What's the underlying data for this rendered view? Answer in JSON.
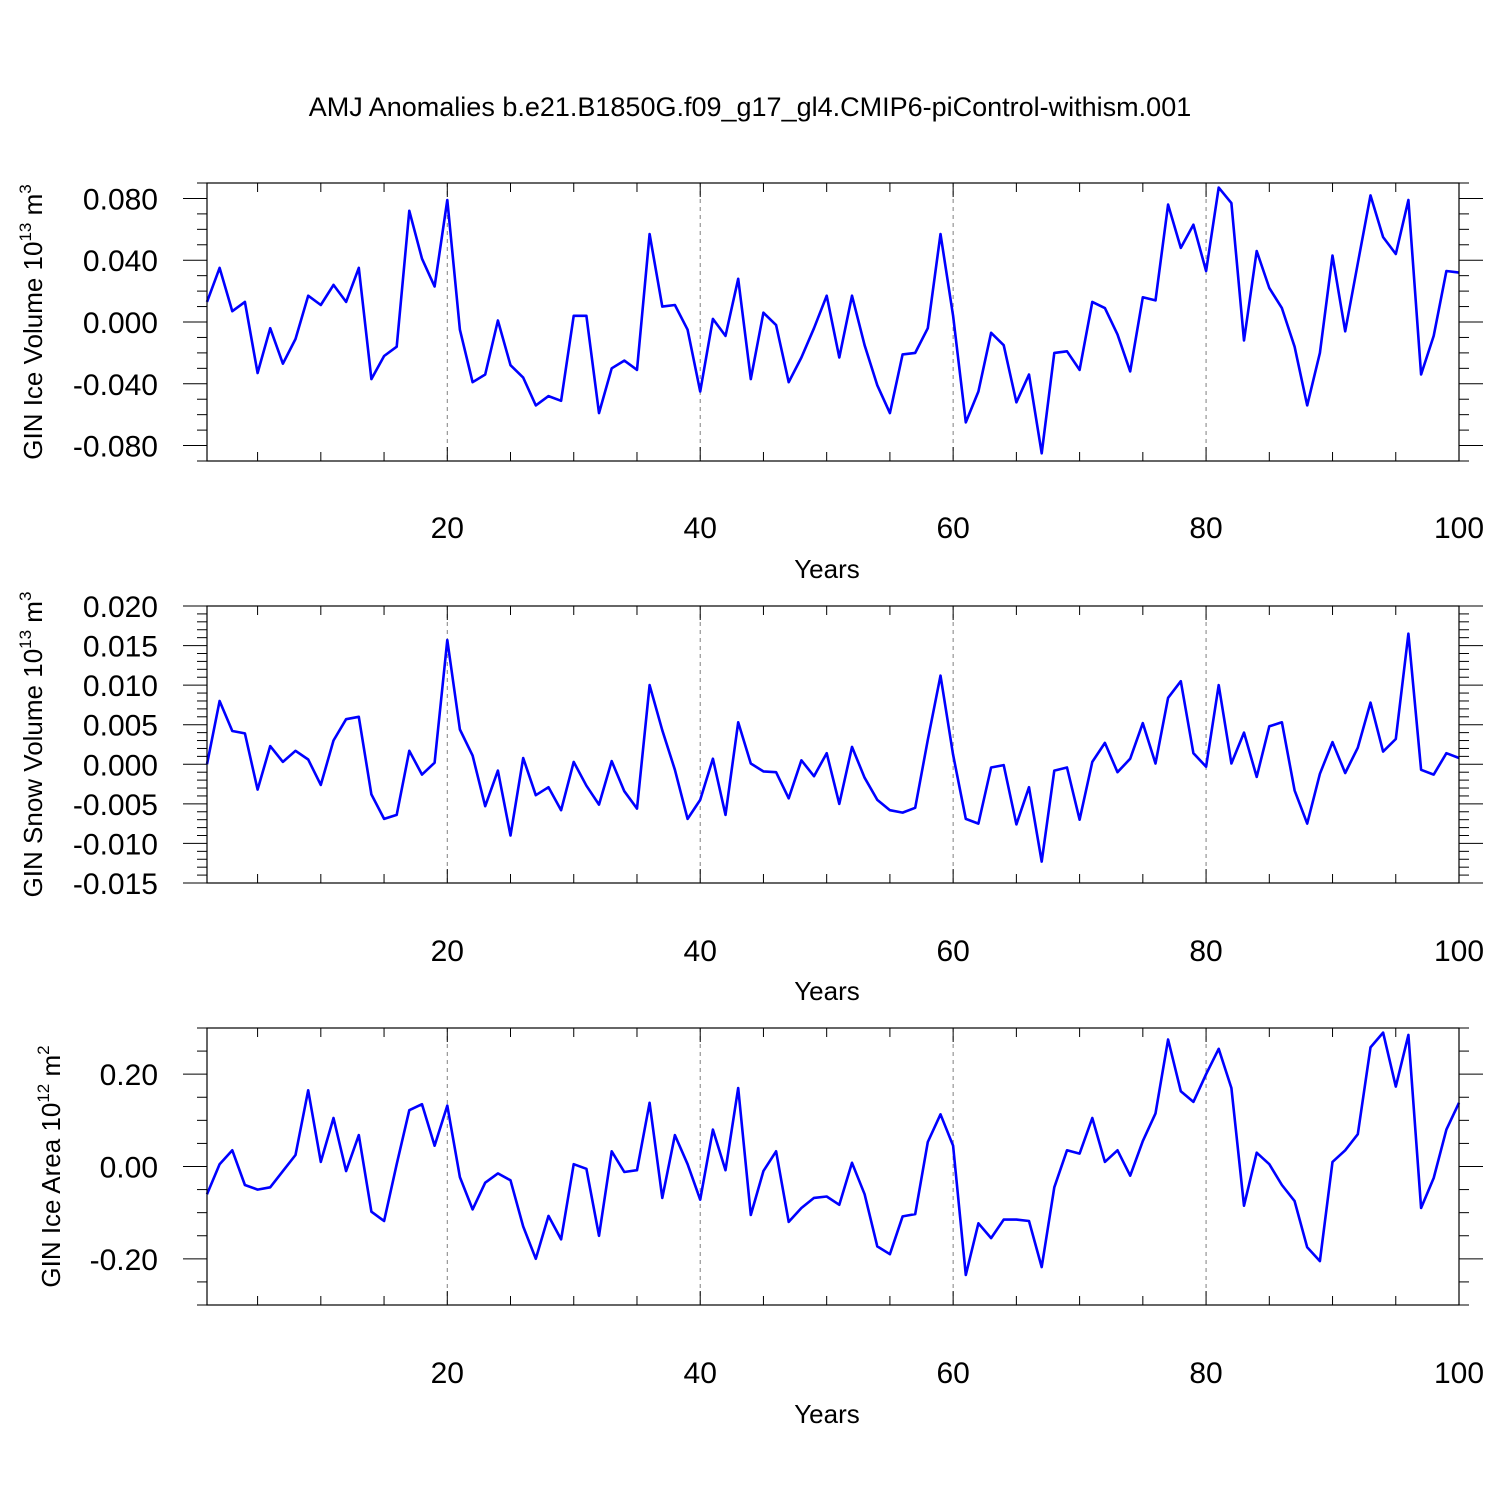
{
  "figure": {
    "title": "AMJ Anomalies b.e21.B1850G.f09_g17_gl4.CMIP6-piControl-withism.001",
    "line_color": "#0000ff"
  },
  "chart_data": [
    {
      "type": "line",
      "ylabel": "GIN Ice Volume 10",
      "ylabel_exp": "13",
      "ylabel_unit": "m",
      "ylabel_unit_exp": "3",
      "xlabel": "Years",
      "xlim": [
        1,
        100
      ],
      "ylim": [
        -0.09,
        0.09
      ],
      "x_ticks": [
        20,
        40,
        60,
        80,
        100
      ],
      "y_ticks": [
        -0.08,
        -0.04,
        0.0,
        0.04,
        0.08
      ],
      "y_tick_labels": [
        "-0.080",
        "-0.040",
        "0.000",
        "0.040",
        "0.080"
      ],
      "y_minor_step": 0.01,
      "gridlines_x": [
        20,
        40,
        60,
        80
      ],
      "series": [
        {
          "x": [
            1,
            2,
            3,
            4,
            5,
            6,
            7,
            8,
            9,
            10,
            11,
            12,
            13,
            14,
            15,
            16,
            17,
            18,
            19,
            20,
            21,
            22,
            23,
            24,
            25,
            26,
            27,
            28,
            29,
            30,
            31,
            32,
            33,
            34,
            35,
            36,
            37,
            38,
            39,
            40,
            41,
            42,
            43,
            44,
            45,
            46,
            47,
            48,
            49,
            50,
            51,
            52,
            53,
            54,
            55,
            56,
            57,
            58,
            59,
            60,
            61,
            62,
            63,
            64,
            65,
            66,
            67,
            68,
            69,
            70,
            71,
            72,
            73,
            74,
            75,
            76,
            77,
            78,
            79,
            80,
            81,
            82,
            83,
            84,
            85,
            86,
            87,
            88,
            89,
            90,
            91,
            92,
            93,
            94,
            95,
            96,
            97,
            98,
            99,
            100
          ],
          "values": [
            0.013,
            0.035,
            0.007,
            0.013,
            -0.033,
            -0.004,
            -0.027,
            -0.011,
            0.017,
            0.011,
            0.024,
            0.013,
            0.035,
            -0.037,
            -0.022,
            -0.016,
            0.072,
            0.041,
            0.023,
            0.079,
            -0.005,
            -0.039,
            -0.034,
            0.001,
            -0.028,
            -0.036,
            -0.054,
            -0.048,
            -0.051,
            0.004,
            0.004,
            -0.059,
            -0.03,
            -0.025,
            -0.031,
            0.057,
            0.01,
            0.011,
            -0.005,
            -0.045,
            0.002,
            -0.009,
            0.028,
            -0.037,
            0.006,
            -0.002,
            -0.039,
            -0.023,
            -0.004,
            0.017,
            -0.023,
            0.017,
            -0.015,
            -0.041,
            -0.059,
            -0.021,
            -0.02,
            -0.004,
            0.057,
            0.004,
            -0.065,
            -0.045,
            -0.007,
            -0.015,
            -0.052,
            -0.034,
            -0.085,
            -0.02,
            -0.019,
            -0.031,
            0.013,
            0.009,
            -0.008,
            -0.032,
            0.016,
            0.014,
            0.076,
            0.048,
            0.063,
            0.033,
            0.087,
            0.077,
            -0.012,
            0.046,
            0.022,
            0.009,
            -0.016,
            -0.054,
            -0.02,
            0.043,
            -0.006,
            0.038,
            0.082,
            0.055,
            0.044,
            0.079,
            -0.034,
            -0.009,
            0.033,
            0.032
          ]
        }
      ]
    },
    {
      "type": "line",
      "ylabel": "GIN Snow Volume 10",
      "ylabel_exp": "13",
      "ylabel_unit": "m",
      "ylabel_unit_exp": "3",
      "xlabel": "Years",
      "xlim": [
        1,
        100
      ],
      "ylim": [
        -0.015,
        0.02
      ],
      "x_ticks": [
        20,
        40,
        60,
        80,
        100
      ],
      "y_ticks": [
        -0.015,
        -0.01,
        -0.005,
        0.0,
        0.005,
        0.01,
        0.015,
        0.02
      ],
      "y_tick_labels": [
        "-0.015",
        "-0.010",
        "-0.005",
        "0.000",
        "0.005",
        "0.010",
        "0.015",
        "0.020"
      ],
      "y_minor_step": 0.001,
      "gridlines_x": [
        20,
        40,
        60,
        80
      ],
      "series": [
        {
          "x": [
            1,
            2,
            3,
            4,
            5,
            6,
            7,
            8,
            9,
            10,
            11,
            12,
            13,
            14,
            15,
            16,
            17,
            18,
            19,
            20,
            21,
            22,
            23,
            24,
            25,
            26,
            27,
            28,
            29,
            30,
            31,
            32,
            33,
            34,
            35,
            36,
            37,
            38,
            39,
            40,
            41,
            42,
            43,
            44,
            45,
            46,
            47,
            48,
            49,
            50,
            51,
            52,
            53,
            54,
            55,
            56,
            57,
            58,
            59,
            60,
            61,
            62,
            63,
            64,
            65,
            66,
            67,
            68,
            69,
            70,
            71,
            72,
            73,
            74,
            75,
            76,
            77,
            78,
            79,
            80,
            81,
            82,
            83,
            84,
            85,
            86,
            87,
            88,
            89,
            90,
            91,
            92,
            93,
            94,
            95,
            96,
            97,
            98,
            99,
            100
          ],
          "values": [
            0.0,
            0.008,
            0.0042,
            0.0039,
            -0.0032,
            0.0023,
            0.0003,
            0.0017,
            0.0006,
            -0.0026,
            0.003,
            0.0057,
            0.006,
            -0.0038,
            -0.0069,
            -0.0064,
            0.0017,
            -0.0013,
            0.0002,
            0.0157,
            0.0044,
            0.0011,
            -0.0053,
            -0.0008,
            -0.009,
            0.0008,
            -0.0039,
            -0.0029,
            -0.0058,
            0.0003,
            -0.0027,
            -0.0051,
            0.0004,
            -0.0034,
            -0.0056,
            0.01,
            0.0043,
            -0.0007,
            -0.0069,
            -0.0045,
            0.0007,
            -0.0064,
            0.0053,
            0.0001,
            -0.0009,
            -0.001,
            -0.0043,
            0.0005,
            -0.0015,
            0.0014,
            -0.005,
            0.0022,
            -0.0017,
            -0.0045,
            -0.0058,
            -0.0061,
            -0.0055,
            0.0031,
            0.0112,
            0.0012,
            -0.0069,
            -0.0075,
            -0.0004,
            -0.0001,
            -0.0076,
            -0.0029,
            -0.0123,
            -0.0008,
            -0.0004,
            -0.007,
            0.0003,
            0.0027,
            -0.001,
            0.0007,
            0.0052,
            0.0001,
            0.0084,
            0.0105,
            0.0014,
            -0.0003,
            0.01,
            0.0001,
            0.004,
            -0.0016,
            0.0048,
            0.0053,
            -0.0033,
            -0.0075,
            -0.0012,
            0.0028,
            -0.0011,
            0.0021,
            0.0078,
            0.0016,
            0.0032,
            0.0165,
            -0.0007,
            -0.0013,
            0.0014,
            0.0008
          ]
        }
      ]
    },
    {
      "type": "line",
      "ylabel": "GIN Ice Area 10",
      "ylabel_exp": "12",
      "ylabel_unit": "m",
      "ylabel_unit_exp": "2",
      "xlabel": "Years",
      "xlim": [
        1,
        100
      ],
      "ylim": [
        -0.3,
        0.3
      ],
      "x_ticks": [
        20,
        40,
        60,
        80,
        100
      ],
      "y_ticks": [
        -0.2,
        0.0,
        0.2
      ],
      "y_tick_labels": [
        "-0.20",
        "0.00",
        "0.20"
      ],
      "y_minor_step": 0.05,
      "gridlines_x": [
        20,
        40,
        60,
        80
      ],
      "series": [
        {
          "x": [
            1,
            2,
            3,
            4,
            5,
            6,
            7,
            8,
            9,
            10,
            11,
            12,
            13,
            14,
            15,
            16,
            17,
            18,
            19,
            20,
            21,
            22,
            23,
            24,
            25,
            26,
            27,
            28,
            29,
            30,
            31,
            32,
            33,
            34,
            35,
            36,
            37,
            38,
            39,
            40,
            41,
            42,
            43,
            44,
            45,
            46,
            47,
            48,
            49,
            50,
            51,
            52,
            53,
            54,
            55,
            56,
            57,
            58,
            59,
            60,
            61,
            62,
            63,
            64,
            65,
            66,
            67,
            68,
            69,
            70,
            71,
            72,
            73,
            74,
            75,
            76,
            77,
            78,
            79,
            80,
            81,
            82,
            83,
            84,
            85,
            86,
            87,
            88,
            89,
            90,
            91,
            92,
            93,
            94,
            95,
            96,
            97,
            98,
            99,
            100
          ],
          "values": [
            -0.06,
            0.005,
            0.035,
            -0.04,
            -0.05,
            -0.045,
            -0.01,
            0.025,
            0.165,
            0.01,
            0.105,
            -0.01,
            0.068,
            -0.098,
            -0.118,
            0.005,
            0.122,
            0.135,
            0.045,
            0.132,
            -0.023,
            -0.093,
            -0.035,
            -0.015,
            -0.03,
            -0.13,
            -0.2,
            -0.107,
            -0.158,
            0.005,
            -0.005,
            -0.15,
            0.033,
            -0.012,
            -0.008,
            0.138,
            -0.068,
            0.068,
            0.005,
            -0.072,
            0.08,
            -0.008,
            0.17,
            -0.105,
            -0.01,
            0.033,
            -0.12,
            -0.09,
            -0.068,
            -0.065,
            -0.083,
            0.008,
            -0.06,
            -0.173,
            -0.19,
            -0.108,
            -0.103,
            0.053,
            0.113,
            0.045,
            -0.235,
            -0.123,
            -0.155,
            -0.115,
            -0.115,
            -0.118,
            -0.218,
            -0.045,
            0.035,
            0.028,
            0.105,
            0.01,
            0.035,
            -0.02,
            0.055,
            0.115,
            0.275,
            0.163,
            0.14,
            0.2,
            0.255,
            0.17,
            -0.085,
            0.03,
            0.005,
            -0.04,
            -0.075,
            -0.175,
            -0.205,
            0.01,
            0.035,
            0.07,
            0.258,
            0.29,
            0.173,
            0.285,
            -0.09,
            -0.025,
            0.08,
            0.138
          ]
        }
      ]
    }
  ]
}
